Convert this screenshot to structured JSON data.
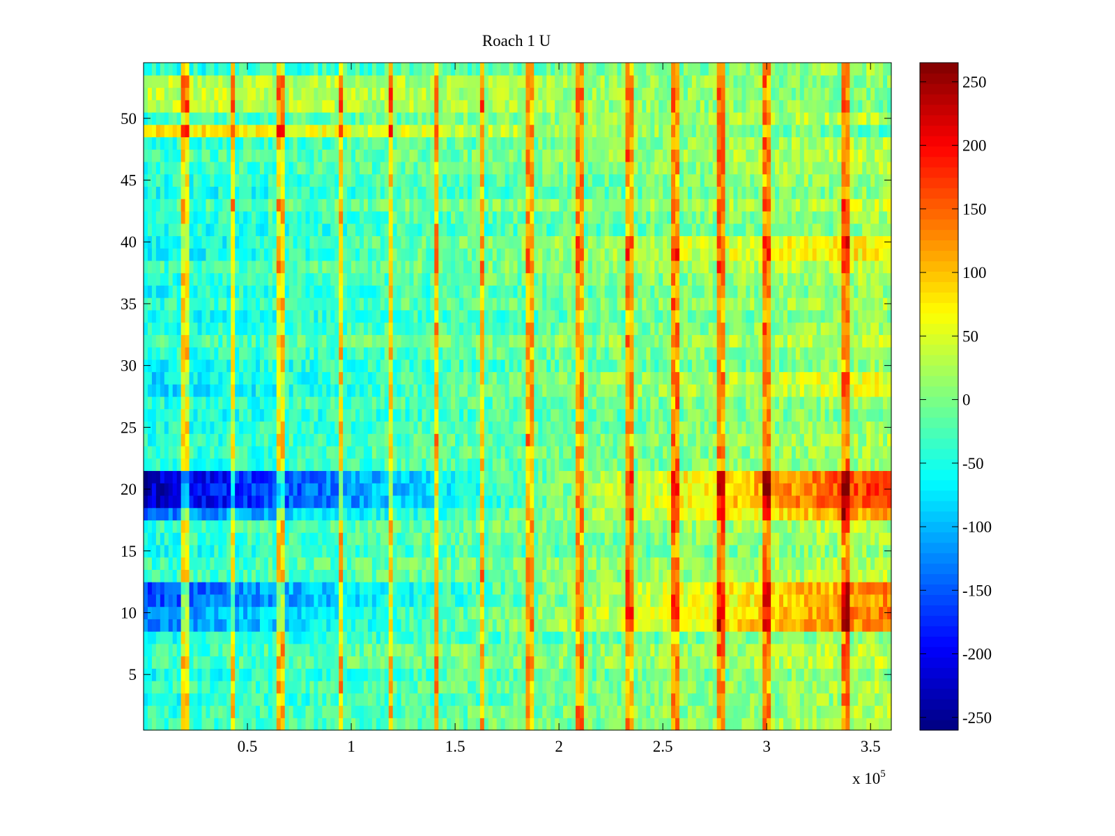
{
  "chart_data": {
    "type": "heatmap",
    "title": "Roach 1 U",
    "xlabel": "",
    "ylabel": "",
    "x_multiplier_label": "x 10",
    "x_multiplier_exponent": "5",
    "xlim": [
      0,
      3.6
    ],
    "ylim": [
      0.5,
      54.5
    ],
    "x_ticks": [
      0.5,
      1,
      1.5,
      2,
      2.5,
      3,
      3.5
    ],
    "x_tick_labels": [
      "0.5",
      "1",
      "1.5",
      "2",
      "2.5",
      "3",
      "3.5"
    ],
    "y_ticks": [
      5,
      10,
      15,
      20,
      25,
      30,
      35,
      40,
      45,
      50
    ],
    "y_tick_labels": [
      "5",
      "10",
      "15",
      "20",
      "25",
      "30",
      "35",
      "40",
      "45",
      "50"
    ],
    "rows": 54,
    "x_columns": 180,
    "colormap": "jet",
    "clim": [
      -260,
      265
    ],
    "colorbar_ticks": [
      250,
      200,
      150,
      100,
      50,
      0,
      -50,
      -100,
      -150,
      -200,
      -250
    ],
    "colorbar_tick_labels": [
      "250",
      "200",
      "150",
      "100",
      "50",
      "0",
      "-50",
      "-100",
      "-150",
      "-200",
      "-250"
    ],
    "spike_columns_x": [
      0.2,
      0.43,
      0.66,
      0.95,
      1.19,
      1.41,
      1.63,
      1.86,
      2.1,
      2.34,
      2.56,
      2.78,
      3.0,
      3.38
    ],
    "row_profiles": [
      {
        "rows": [
          19,
          21
        ],
        "start_value": -230,
        "end_value": 180
      },
      {
        "rows": [
          18,
          18
        ],
        "start_value": -140,
        "end_value": 120
      },
      {
        "rows": [
          11,
          12
        ],
        "start_value": -160,
        "end_value": 130
      },
      {
        "rows": [
          9,
          10
        ],
        "start_value": -130,
        "end_value": 140
      },
      {
        "rows": [
          28,
          29
        ],
        "start_value": -80,
        "end_value": 60
      },
      {
        "rows": [
          39,
          40
        ],
        "start_value": -70,
        "end_value": 80
      },
      {
        "rows": [
          49,
          49
        ],
        "start_value": 80,
        "end_value": -20
      },
      {
        "rows": [
          51,
          53
        ],
        "start_value": 40,
        "end_value": 0
      }
    ]
  }
}
